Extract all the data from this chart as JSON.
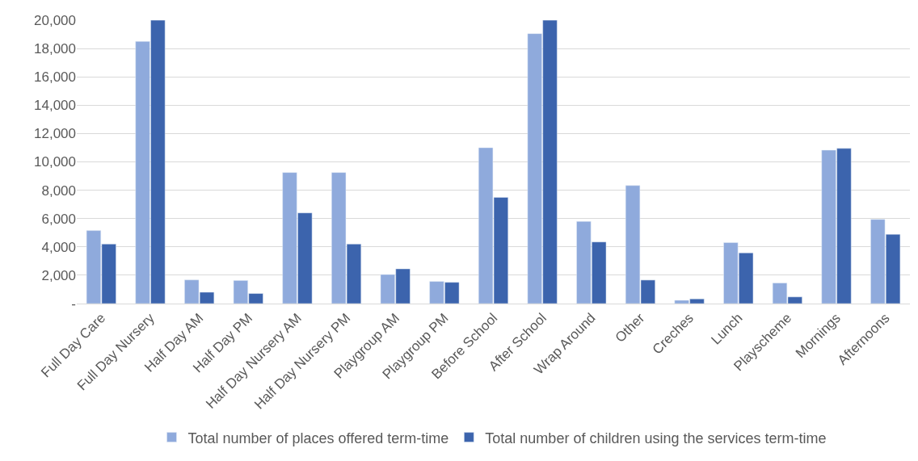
{
  "chart_data": {
    "type": "bar",
    "categories": [
      "Full Day Care",
      "Full Day Nursery",
      "Half Day AM",
      "Half Day PM",
      "Half Day Nursery AM",
      "Half Day Nursery PM",
      "Playgroup AM",
      "Playgroup PM",
      "Before School",
      "After School",
      "Wrap Around",
      "Other",
      "Creches",
      "Lunch",
      "Playscheme",
      "Mornings",
      "Afternoons"
    ],
    "series": [
      {
        "name": "Total number of places offered term-time",
        "color": "#8faadc",
        "values": [
          5150,
          18500,
          1670,
          1630,
          9250,
          9250,
          2050,
          1560,
          11000,
          19050,
          5800,
          8330,
          230,
          4300,
          1450,
          10830,
          5940
        ]
      },
      {
        "name": "Total number of children using the services term-time",
        "color": "#3c64ad",
        "values": [
          4200,
          20000,
          800,
          710,
          6400,
          4200,
          2450,
          1500,
          7500,
          20000,
          4350,
          1660,
          330,
          3580,
          470,
          10950,
          4890
        ]
      }
    ],
    "ylim": [
      0,
      20000
    ],
    "yticks": [
      {
        "value": 0,
        "label": "-"
      },
      {
        "value": 2000,
        "label": "2,000"
      },
      {
        "value": 4000,
        "label": "4,000"
      },
      {
        "value": 6000,
        "label": "6,000"
      },
      {
        "value": 8000,
        "label": "8,000"
      },
      {
        "value": 10000,
        "label": "10,000"
      },
      {
        "value": 12000,
        "label": "12,000"
      },
      {
        "value": 14000,
        "label": "14,000"
      },
      {
        "value": 16000,
        "label": "16,000"
      },
      {
        "value": 18000,
        "label": "18,000"
      },
      {
        "value": 20000,
        "label": "20,000"
      }
    ],
    "grid": "y",
    "legend": "bottom"
  }
}
